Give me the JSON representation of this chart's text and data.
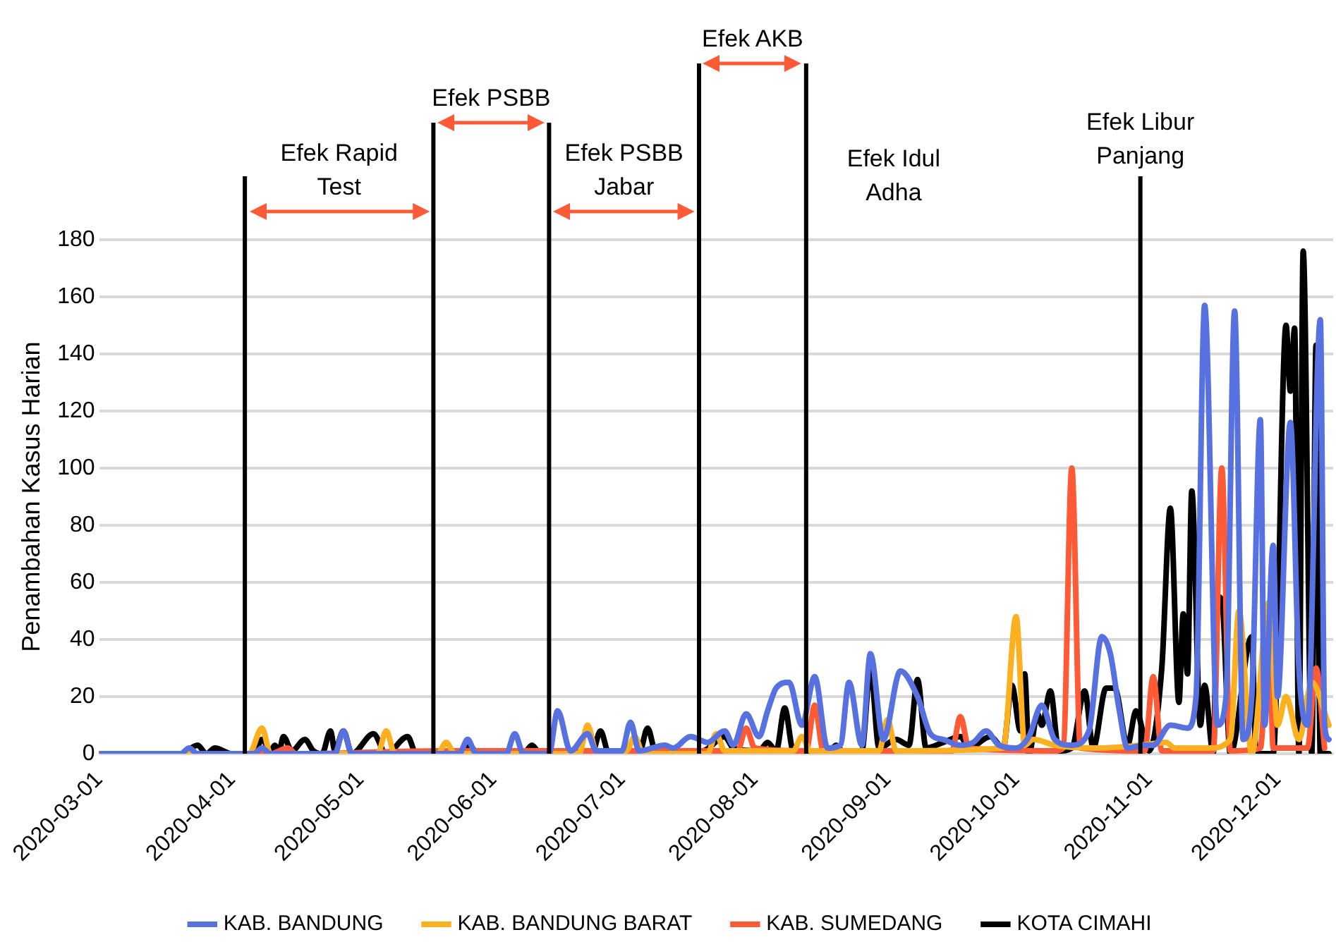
{
  "chart_data": {
    "type": "line",
    "ylabel": "Penambahan Kasus Harian",
    "xlim": [
      "2020-03-01",
      "2020-12-14"
    ],
    "xticks": [
      "2020-03-01",
      "2020-04-01",
      "2020-05-01",
      "2020-06-01",
      "2020-07-01",
      "2020-08-01",
      "2020-09-01",
      "2020-10-01",
      "2020-11-01",
      "2020-12-01"
    ],
    "ylim": [
      0,
      180
    ],
    "yticks": [
      0,
      20,
      40,
      60,
      80,
      100,
      120,
      140,
      160,
      180
    ],
    "grid": "y",
    "legend": "bottom",
    "marker": "none",
    "line_style": "solid",
    "series": [
      {
        "name": "KAB. BANDUNG",
        "color": "#5772e0",
        "x": [
          "2020-03-01",
          "2020-03-20",
          "2020-03-22",
          "2020-03-24",
          "2020-04-06",
          "2020-04-08",
          "2020-04-10",
          "2020-04-25",
          "2020-04-27",
          "2020-04-29",
          "2020-05-24",
          "2020-05-26",
          "2020-05-28",
          "2020-06-04",
          "2020-06-06",
          "2020-06-08",
          "2020-06-14",
          "2020-06-16",
          "2020-06-19",
          "2020-06-23",
          "2020-06-25",
          "2020-07-01",
          "2020-07-03",
          "2020-07-05",
          "2020-07-11",
          "2020-07-13",
          "2020-07-17",
          "2020-07-21",
          "2020-07-25",
          "2020-07-27",
          "2020-07-30",
          "2020-08-02",
          "2020-08-04",
          "2020-08-06",
          "2020-08-09",
          "2020-08-12",
          "2020-08-15",
          "2020-08-18",
          "2020-08-21",
          "2020-08-23",
          "2020-08-26",
          "2020-08-28",
          "2020-08-31",
          "2020-09-04",
          "2020-09-08",
          "2020-09-11",
          "2020-09-14",
          "2020-09-18",
          "2020-09-21",
          "2020-09-24",
          "2020-09-27",
          "2020-10-01",
          "2020-10-04",
          "2020-10-07",
          "2020-10-10",
          "2020-10-14",
          "2020-10-18",
          "2020-10-21",
          "2020-10-23",
          "2020-10-25",
          "2020-10-27",
          "2020-10-31",
          "2020-11-02",
          "2020-11-06",
          "2020-11-10",
          "2020-11-12",
          "2020-11-14",
          "2020-11-17",
          "2020-11-19",
          "2020-11-21",
          "2020-11-23",
          "2020-11-25",
          "2020-11-27",
          "2020-11-28",
          "2020-11-30",
          "2020-12-01",
          "2020-12-04",
          "2020-12-06",
          "2020-12-08",
          "2020-12-11",
          "2020-12-12",
          "2020-12-13"
        ],
        "values": [
          0,
          0,
          2,
          0,
          0,
          2,
          0,
          0,
          8,
          0,
          0,
          5,
          0,
          0,
          7,
          0,
          0,
          15,
          1,
          7,
          1,
          1,
          11,
          1,
          3,
          2,
          6,
          4,
          8,
          3,
          14,
          6,
          15,
          23,
          25,
          10,
          27,
          2,
          3,
          25,
          3,
          35,
          5,
          29,
          20,
          7,
          5,
          3,
          4,
          8,
          3,
          2,
          6,
          17,
          5,
          3,
          8,
          41,
          35,
          16,
          2,
          3,
          3,
          10,
          9,
          20,
          157,
          10,
          20,
          155,
          5,
          20,
          117,
          10,
          73,
          20,
          116,
          30,
          10,
          152,
          10,
          5
        ]
      },
      {
        "name": "KAB. BANDUNG BARAT",
        "color": "#fdb01f",
        "x": [
          "2020-03-01",
          "2020-04-05",
          "2020-04-08",
          "2020-04-10",
          "2020-05-05",
          "2020-05-07",
          "2020-05-09",
          "2020-05-19",
          "2020-05-21",
          "2020-05-23",
          "2020-06-21",
          "2020-06-23",
          "2020-06-25",
          "2020-07-02",
          "2020-07-04",
          "2020-07-06",
          "2020-07-21",
          "2020-07-23",
          "2020-07-25",
          "2020-08-10",
          "2020-08-12",
          "2020-08-14",
          "2020-08-30",
          "2020-09-01",
          "2020-09-03",
          "2020-09-28",
          "2020-10-01",
          "2020-10-03",
          "2020-10-05",
          "2020-10-10",
          "2020-10-20",
          "2020-10-30",
          "2020-11-05",
          "2020-11-07",
          "2020-11-15",
          "2020-11-20",
          "2020-11-22",
          "2020-11-25",
          "2020-11-29",
          "2020-12-01",
          "2020-12-03",
          "2020-12-06",
          "2020-12-09",
          "2020-12-13"
        ],
        "values": [
          0,
          0,
          9,
          0,
          0,
          8,
          0,
          0,
          4,
          0,
          0,
          10,
          1,
          1,
          6,
          0,
          0,
          7,
          1,
          1,
          6,
          1,
          1,
          12,
          1,
          2,
          48,
          3,
          5,
          3,
          2,
          3,
          4,
          2,
          2,
          5,
          50,
          0,
          53,
          10,
          20,
          5,
          25,
          10
        ]
      },
      {
        "name": "KAB. SUMEDANG",
        "color": "#ff5a36",
        "x": [
          "2020-03-01",
          "2020-04-10",
          "2020-04-14",
          "2020-04-16",
          "2020-05-20",
          "2020-06-20",
          "2020-07-10",
          "2020-07-28",
          "2020-07-30",
          "2020-08-01",
          "2020-08-13",
          "2020-08-15",
          "2020-08-17",
          "2020-09-16",
          "2020-09-18",
          "2020-09-20",
          "2020-10-10",
          "2020-10-12",
          "2020-10-14",
          "2020-10-16",
          "2020-10-31",
          "2020-11-02",
          "2020-11-04",
          "2020-11-16",
          "2020-11-18",
          "2020-11-20",
          "2020-11-27",
          "2020-11-29",
          "2020-11-30",
          "2020-12-08",
          "2020-12-10",
          "2020-12-12"
        ],
        "values": [
          0,
          0,
          2,
          0,
          1,
          1,
          1,
          1,
          9,
          2,
          1,
          17,
          1,
          1,
          13,
          2,
          1,
          2,
          100,
          2,
          1,
          27,
          1,
          1,
          100,
          1,
          2,
          45,
          2,
          2,
          30,
          2
        ]
      },
      {
        "name": "KOTA CIMAHI",
        "color": "#000000",
        "x": [
          "2020-03-01",
          "2020-03-20",
          "2020-03-24",
          "2020-03-26",
          "2020-03-28",
          "2020-04-01",
          "2020-04-06",
          "2020-04-08",
          "2020-04-10",
          "2020-04-11",
          "2020-04-12",
          "2020-04-13",
          "2020-04-15",
          "2020-04-18",
          "2020-04-20",
          "2020-04-22",
          "2020-04-24",
          "2020-04-25",
          "2020-04-27",
          "2020-04-29",
          "2020-05-04",
          "2020-05-07",
          "2020-05-12",
          "2020-05-14",
          "2020-05-24",
          "2020-05-26",
          "2020-05-28",
          "2020-06-08",
          "2020-06-10",
          "2020-06-12",
          "2020-06-24",
          "2020-06-26",
          "2020-06-28",
          "2020-07-05",
          "2020-07-07",
          "2020-07-09",
          "2020-07-20",
          "2020-07-25",
          "2020-07-27",
          "2020-08-02",
          "2020-08-04",
          "2020-08-06",
          "2020-08-08",
          "2020-08-10",
          "2020-08-18",
          "2020-08-20",
          "2020-08-22",
          "2020-08-26",
          "2020-08-28",
          "2020-08-30",
          "2020-09-03",
          "2020-09-06",
          "2020-09-08",
          "2020-09-10",
          "2020-09-14",
          "2020-09-18",
          "2020-09-20",
          "2020-09-25",
          "2020-09-28",
          "2020-09-30",
          "2020-10-02",
          "2020-10-03",
          "2020-10-04",
          "2020-10-06",
          "2020-10-07",
          "2020-10-09",
          "2020-10-11",
          "2020-10-14",
          "2020-10-17",
          "2020-10-19",
          "2020-10-22",
          "2020-10-24",
          "2020-10-27",
          "2020-10-29",
          "2020-11-01",
          "2020-11-04",
          "2020-11-06",
          "2020-11-08",
          "2020-11-09",
          "2020-11-10",
          "2020-11-11",
          "2020-11-13",
          "2020-11-14",
          "2020-11-16",
          "2020-11-17",
          "2020-11-18",
          "2020-11-20",
          "2020-11-25",
          "2020-11-26",
          "2020-11-30",
          "2020-12-03",
          "2020-12-04",
          "2020-12-05",
          "2020-12-06",
          "2020-12-07",
          "2020-12-09",
          "2020-12-10",
          "2020-12-11",
          "2020-12-13"
        ],
        "values": [
          0,
          0,
          3,
          0,
          2,
          0,
          0,
          5,
          1,
          3,
          1,
          6,
          1,
          5,
          1,
          0,
          8,
          1,
          8,
          0,
          7,
          0,
          6,
          0,
          0,
          3,
          1,
          0,
          3,
          0,
          0,
          8,
          0,
          0,
          9,
          0,
          1,
          6,
          2,
          1,
          4,
          1,
          16,
          1,
          0,
          3,
          0,
          1,
          30,
          2,
          5,
          3,
          26,
          2,
          4,
          6,
          2,
          6,
          2,
          24,
          8,
          28,
          0,
          14,
          10,
          22,
          1,
          2,
          22,
          2,
          23,
          23,
          3,
          15,
          1,
          30,
          86,
          18,
          49,
          28,
          92,
          10,
          24,
          0,
          55,
          54,
          0,
          41,
          0,
          0,
          150,
          127,
          149,
          0,
          176,
          0,
          143,
          0,
          0
        ]
      }
    ],
    "ref_lines": [
      {
        "axis": "x",
        "value": "2020-04-04",
        "label": null,
        "color": "#000000"
      },
      {
        "axis": "x",
        "value": "2020-05-18",
        "label": null,
        "color": "#000000"
      },
      {
        "axis": "x",
        "value": "2020-06-14",
        "label": null,
        "color": "#000000"
      },
      {
        "axis": "x",
        "value": "2020-07-19",
        "label": null,
        "color": "#000000"
      },
      {
        "axis": "x",
        "value": "2020-08-13",
        "label": "Efek Idul Adha",
        "color": "#000000"
      },
      {
        "axis": "x",
        "value": "2020-10-30",
        "label": "Efek Libur Panjang",
        "color": "#000000"
      }
    ],
    "annotations": [
      "Efek Rapid Test",
      "Efek PSBB",
      "Efek PSBB Jabar",
      "Efek AKB"
    ]
  }
}
